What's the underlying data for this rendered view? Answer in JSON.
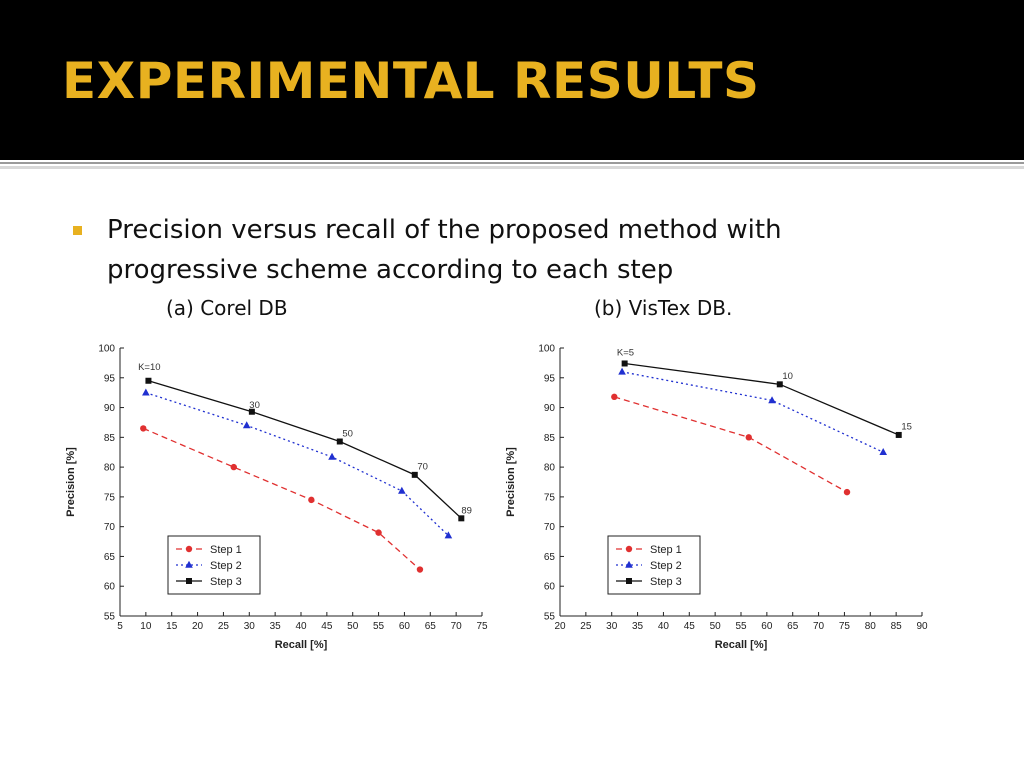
{
  "slide": {
    "title": "EXPERIMENTAL RESULTS",
    "bullet": "Precision versus recall of the proposed method with progressive scheme according to each step",
    "label_a": "(a) Corel DB",
    "label_b": "(b) VisTex DB.",
    "accent_color": "#e8b120"
  },
  "chart_data": [
    {
      "type": "line",
      "xlabel": "Recall [%]",
      "ylabel": "Precision [%]",
      "xlim": [
        5,
        75
      ],
      "ylim": [
        55,
        100
      ],
      "xticks": [
        5,
        10,
        15,
        20,
        25,
        30,
        35,
        40,
        45,
        50,
        55,
        60,
        65,
        70,
        75
      ],
      "yticks": [
        55,
        60,
        65,
        70,
        75,
        80,
        85,
        90,
        95,
        100
      ],
      "legend": "bottom-left",
      "grid": false,
      "series": [
        {
          "name": "Step 1",
          "color": "#e03030",
          "marker": "circle",
          "dash": "dashed",
          "x": [
            9.5,
            27,
            42,
            55,
            63
          ],
          "y": [
            86.5,
            80,
            74.5,
            69,
            62.8
          ]
        },
        {
          "name": "Step 2",
          "color": "#2030d0",
          "marker": "triangle",
          "dash": "dotted",
          "x": [
            10,
            29.5,
            46,
            59.5,
            68.5
          ],
          "y": [
            92.5,
            87,
            81.7,
            76,
            68.5
          ]
        },
        {
          "name": "Step 3",
          "color": "#111111",
          "marker": "square",
          "dash": "solid",
          "x": [
            10.5,
            30.5,
            47.5,
            62,
            71
          ],
          "y": [
            94.5,
            89.3,
            84.3,
            78.7,
            71.4
          ]
        }
      ],
      "annotations": [
        {
          "text": "K=10",
          "x": 8.5,
          "y": 96.3
        },
        {
          "text": "30",
          "x": 30,
          "y": 89.9
        },
        {
          "text": "50",
          "x": 48,
          "y": 85.1
        },
        {
          "text": "70",
          "x": 62.5,
          "y": 79.6
        },
        {
          "text": "89",
          "x": 71,
          "y": 72.2
        }
      ]
    },
    {
      "type": "line",
      "xlabel": "Recall [%]",
      "ylabel": "Precision [%]",
      "xlim": [
        20,
        90
      ],
      "ylim": [
        55,
        100
      ],
      "xticks": [
        20,
        25,
        30,
        35,
        40,
        45,
        50,
        55,
        60,
        65,
        70,
        75,
        80,
        85,
        90
      ],
      "yticks": [
        55,
        60,
        65,
        70,
        75,
        80,
        85,
        90,
        95,
        100
      ],
      "legend": "bottom-left",
      "grid": false,
      "series": [
        {
          "name": "Step 1",
          "color": "#e03030",
          "marker": "circle",
          "dash": "dashed",
          "x": [
            30.5,
            56.5,
            75.5
          ],
          "y": [
            91.8,
            85,
            75.8
          ]
        },
        {
          "name": "Step 2",
          "color": "#2030d0",
          "marker": "triangle",
          "dash": "dotted",
          "x": [
            32,
            61,
            82.5
          ],
          "y": [
            96,
            91.2,
            82.5
          ]
        },
        {
          "name": "Step 3",
          "color": "#111111",
          "marker": "square",
          "dash": "solid",
          "x": [
            32.5,
            62.5,
            85.5
          ],
          "y": [
            97.4,
            93.9,
            85.4
          ]
        }
      ],
      "annotations": [
        {
          "text": "K=5",
          "x": 31,
          "y": 98.7
        },
        {
          "text": "10",
          "x": 63,
          "y": 94.8
        },
        {
          "text": "15",
          "x": 86,
          "y": 86.3
        }
      ]
    }
  ]
}
